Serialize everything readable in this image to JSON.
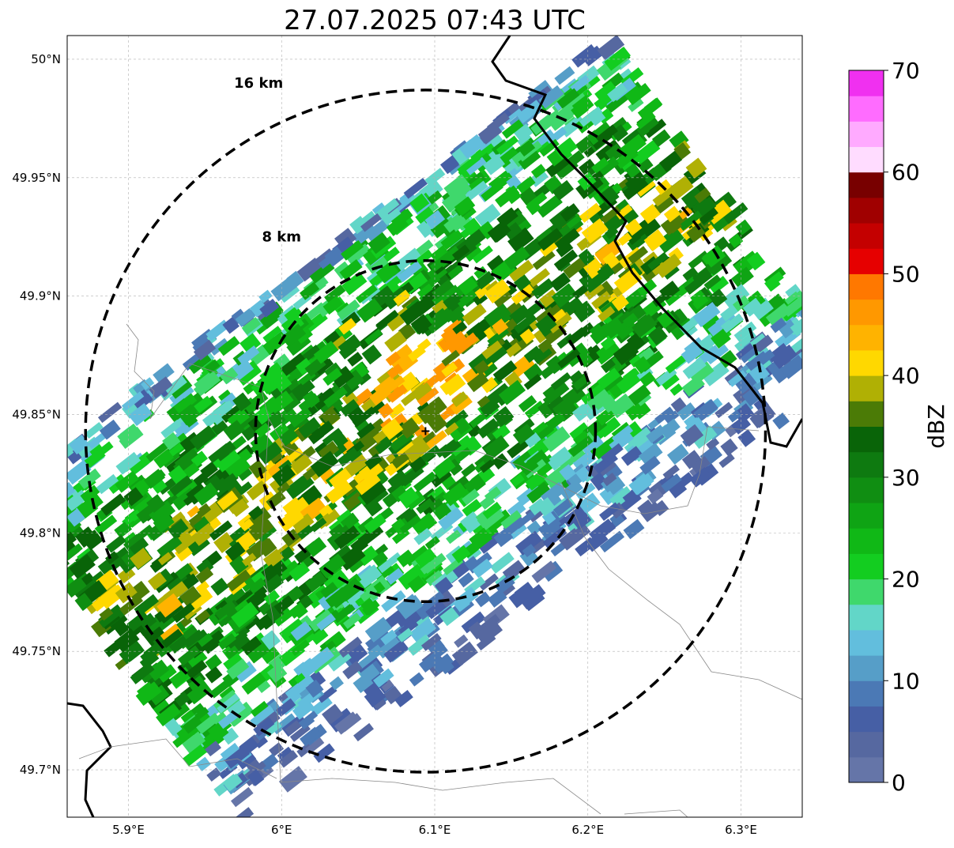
{
  "title": "27.07.2025 07:43 UTC",
  "map": {
    "lon_range": [
      5.86,
      6.34
    ],
    "lat_range": [
      49.68,
      50.01
    ],
    "lon_ticks": [
      {
        "value": 5.9,
        "label": "5.9°E"
      },
      {
        "value": 6.0,
        "label": "6°E"
      },
      {
        "value": 6.1,
        "label": "6.1°E"
      },
      {
        "value": 6.2,
        "label": "6.2°E"
      },
      {
        "value": 6.3,
        "label": "6.3°E"
      }
    ],
    "lat_ticks": [
      {
        "value": 50.0,
        "label": "50°N"
      },
      {
        "value": 49.95,
        "label": "49.95°N"
      },
      {
        "value": 49.9,
        "label": "49.9°N"
      },
      {
        "value": 49.85,
        "label": "49.85°N"
      },
      {
        "value": 49.8,
        "label": "49.8°N"
      },
      {
        "value": 49.75,
        "label": "49.75°N"
      },
      {
        "value": 49.7,
        "label": "49.7°N"
      }
    ],
    "gridlines": true,
    "radar_center": {
      "lon": 6.094,
      "lat": 49.843
    },
    "range_rings": [
      {
        "label": "8 km",
        "lon_radius": 0.111,
        "lat_radius": 0.072,
        "label_lon": 6.0,
        "label_lat": 49.923
      },
      {
        "label": "16 km",
        "lon_radius": 0.222,
        "lat_radius": 0.144,
        "label_lon": 5.985,
        "label_lat": 49.988
      }
    ]
  },
  "colorbar": {
    "label": "dBZ",
    "min": 0,
    "max": 70,
    "ticks": [
      0,
      10,
      20,
      30,
      40,
      50,
      60,
      70
    ],
    "levels": [
      {
        "from": 0,
        "to": 2.5,
        "color": "#6575a8"
      },
      {
        "from": 2.5,
        "to": 5,
        "color": "#5668a0"
      },
      {
        "from": 5,
        "to": 7.5,
        "color": "#465fa5"
      },
      {
        "from": 7.5,
        "to": 10,
        "color": "#4b79b5"
      },
      {
        "from": 10,
        "to": 12.5,
        "color": "#569ec8"
      },
      {
        "from": 12.5,
        "to": 15,
        "color": "#62bedd"
      },
      {
        "from": 15,
        "to": 17.5,
        "color": "#62d6c8"
      },
      {
        "from": 17.5,
        "to": 20,
        "color": "#3fd86c"
      },
      {
        "from": 20,
        "to": 22.5,
        "color": "#13cd20"
      },
      {
        "from": 22.5,
        "to": 25,
        "color": "#10b816"
      },
      {
        "from": 25,
        "to": 27.5,
        "color": "#0fa414"
      },
      {
        "from": 27.5,
        "to": 30,
        "color": "#108e12"
      },
      {
        "from": 30,
        "to": 32.5,
        "color": "#0e7a10"
      },
      {
        "from": 32.5,
        "to": 35,
        "color": "#096408"
      },
      {
        "from": 35,
        "to": 37.5,
        "color": "#4b7b06"
      },
      {
        "from": 37.5,
        "to": 40,
        "color": "#b0b004"
      },
      {
        "from": 40,
        "to": 42.5,
        "color": "#ffd800"
      },
      {
        "from": 42.5,
        "to": 45,
        "color": "#ffb300"
      },
      {
        "from": 45,
        "to": 47.5,
        "color": "#ff9800"
      },
      {
        "from": 47.5,
        "to": 50,
        "color": "#ff7800"
      },
      {
        "from": 50,
        "to": 52.5,
        "color": "#e60000"
      },
      {
        "from": 52.5,
        "to": 55,
        "color": "#c40000"
      },
      {
        "from": 55,
        "to": 57.5,
        "color": "#a00000"
      },
      {
        "from": 57.5,
        "to": 60,
        "color": "#780000"
      },
      {
        "from": 60,
        "to": 62.5,
        "color": "#ffdcff"
      },
      {
        "from": 62.5,
        "to": 65,
        "color": "#ffaaff"
      },
      {
        "from": 65,
        "to": 67.5,
        "color": "#ff6cff"
      },
      {
        "from": 67.5,
        "to": 70,
        "color": "#f030f0"
      }
    ]
  },
  "reflectivity_bands": [
    {
      "along_start": -0.16,
      "along_end": 0.12,
      "cross_start": -0.12,
      "cross_end": 0.07,
      "dbz": 22
    },
    {
      "along_start": -0.05,
      "along_end": 0.1,
      "cross_start": -0.05,
      "cross_end": 0.05,
      "dbz": 33
    },
    {
      "along_start": -0.02,
      "along_end": 0.08,
      "cross_start": -0.02,
      "cross_end": 0.03,
      "dbz": 42
    }
  ]
}
